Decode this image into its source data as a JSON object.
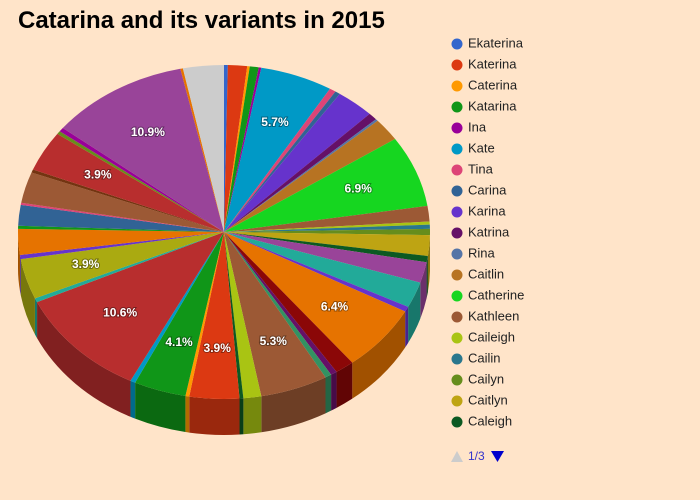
{
  "chart_data": {
    "type": "pie",
    "title": "Catarina and its variants in 2015",
    "legend_page": "1/3",
    "categories": [
      "Ekaterina",
      "Katerina",
      "Caterina",
      "Katarina",
      "Ina",
      "Kate",
      "Tina",
      "Carina",
      "Karina",
      "Katrina",
      "Rina",
      "Caitlin",
      "Catherine",
      "Kathleen",
      "Caileigh",
      "Cailin",
      "Cailyn",
      "Caitlyn",
      "Caleigh",
      null,
      null,
      null,
      null,
      null,
      null,
      null,
      null,
      null,
      null,
      null,
      null,
      null,
      null,
      null,
      null,
      null,
      null,
      null,
      null,
      null,
      null,
      null,
      null,
      null,
      null,
      null,
      null,
      null,
      null
    ],
    "values": [
      0.3,
      1.5,
      0.2,
      0.7,
      0.2,
      5.7,
      0.5,
      0.4,
      3.0,
      0.7,
      0.2,
      2.2,
      6.9,
      1.5,
      0.3,
      0.4,
      0.6,
      2.0,
      0.6,
      2.0,
      2.5,
      0.5,
      6.4,
      1.5,
      0.5,
      0.5,
      5.3,
      1.4,
      0.3,
      3.9,
      0.3,
      4.1,
      0.4,
      10.6,
      0.4,
      3.9,
      0.4,
      2.5,
      0.3,
      2.0,
      0.2,
      3.0,
      0.3,
      3.9,
      0.3,
      0.4,
      10.9,
      0.2,
      3.2
    ],
    "value_labels": [
      null,
      null,
      null,
      null,
      null,
      "5.7%",
      null,
      null,
      null,
      null,
      null,
      null,
      "6.9%",
      null,
      null,
      null,
      null,
      null,
      null,
      null,
      null,
      null,
      "6.4%",
      null,
      null,
      null,
      "5.3%",
      null,
      null,
      "3.9%",
      null,
      "4.1%",
      null,
      "10.6%",
      null,
      "3.9%",
      null,
      null,
      null,
      null,
      null,
      null,
      null,
      "3.9%",
      null,
      null,
      "10.9%",
      null,
      null
    ],
    "colors": [
      "#3366cc",
      "#dc3912",
      "#ff9900",
      "#109618",
      "#990099",
      "#0099c6",
      "#dd4477",
      "#316395",
      "#6633cc",
      "#651067",
      "#5574a6",
      "#b77322",
      "#16d620",
      "#9c5935",
      "#a9c413",
      "#2a778d",
      "#668d1c",
      "#bea413",
      "#0c5922",
      "#994499",
      "#22aa99",
      "#6633cc",
      "#e67300",
      "#8b0707",
      "#651067",
      "#329262",
      "#9c5935",
      "#a9c413",
      "#0c5922",
      "#dc3912",
      "#ff9900",
      "#109618",
      "#0099c6",
      "#b82e2e",
      "#22aa99",
      "#aaaa11",
      "#6633cc",
      "#e67300",
      "#109618",
      "#316395",
      "#dd4477",
      "#9c5935",
      "#743411",
      "#b82e2e",
      "#668d1c",
      "#990099",
      "#994499",
      "#e67300",
      "#cccccc"
    ]
  }
}
